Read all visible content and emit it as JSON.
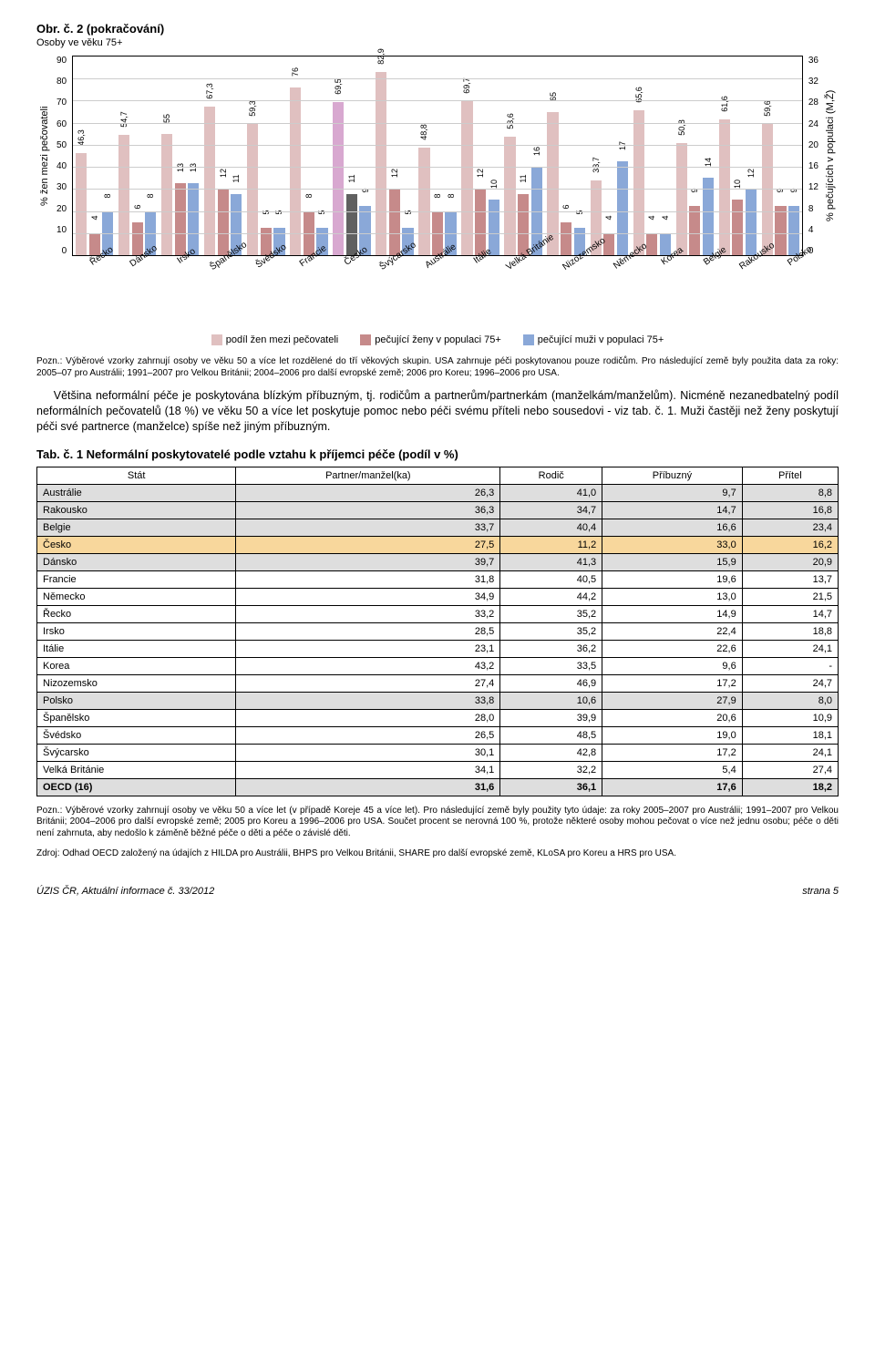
{
  "chart": {
    "title": "Obr. č. 2  (pokračování)",
    "subtitle": "Osoby ve věku 75+",
    "ylabel_left": "% žen mezi pečovateli",
    "ylabel_right": "% pečujících v populaci (M,Ž)",
    "y_left_ticks": [
      "90",
      "80",
      "70",
      "60",
      "50",
      "40",
      "30",
      "20",
      "10",
      "0"
    ],
    "y_right_ticks": [
      "36",
      "32",
      "28",
      "24",
      "20",
      "16",
      "12",
      "8",
      "4",
      "0"
    ],
    "y_left_max": 90,
    "y_right_max": 36,
    "legend": {
      "s1": "podíl žen mezi pečovateli",
      "s2": "pečující ženy v populaci 75+",
      "s3": "pečující muži v populaci 75+"
    },
    "colors": {
      "s1": "#e0c0c0",
      "s2": "#c68a8a",
      "s3": "#8aa8d8"
    },
    "countries": [
      {
        "name": "Řecko",
        "s1": 46.3,
        "s2": 4,
        "s3": 8
      },
      {
        "name": "Dánsko",
        "s1": 54.7,
        "s2": 6,
        "s3": 8
      },
      {
        "name": "Irsko",
        "s1": 55.0,
        "s2": 13,
        "s3": 13
      },
      {
        "name": "Španělsko",
        "s1": 67.3,
        "s2": 12,
        "s3": 11
      },
      {
        "name": "Švédsko",
        "s1": 59.3,
        "s2": 5,
        "s3": 5
      },
      {
        "name": "Francie",
        "s1": 76.0,
        "s2": 8,
        "s3": 5
      },
      {
        "name": "Česko",
        "s1": 69.5,
        "s2": 11,
        "s3": 9,
        "highlight": true
      },
      {
        "name": "Švýcarsko",
        "s1": 82.9,
        "s2": 12,
        "s3": 5
      },
      {
        "name": "Austrálie",
        "s1": 48.8,
        "s2": 8,
        "s3": 8
      },
      {
        "name": "Itálie",
        "s1": 69.7,
        "s2": 12,
        "s3": 10
      },
      {
        "name": "Velká Británie",
        "s1": 53.6,
        "s2": 11,
        "s3": 16
      },
      {
        "name": "Nizozemsko",
        "s1": 65.0,
        "s2": 6,
        "s3": 5
      },
      {
        "name": "Německo",
        "s1": 33.7,
        "s2": 4,
        "s3": 17
      },
      {
        "name": "Korea",
        "s1": 65.6,
        "s2": 4,
        "s3": 4
      },
      {
        "name": "Belgie",
        "s1": 50.8,
        "s2": 9,
        "s3": 14
      },
      {
        "name": "Rakousko",
        "s1": 61.6,
        "s2": 10,
        "s3": 12
      },
      {
        "name": "Polsko",
        "s1": 59.6,
        "s2": 9,
        "s3": 9
      }
    ]
  },
  "notes": {
    "n1": "Pozn.: Výběrové vzorky zahrnují osoby ve věku 50 a více let rozdělené do tří věkových skupin. USA zahrnuje péči poskytovanou pouze rodičům. Pro následující země byly použita data za roky: 2005–07 pro Austrálii; 1991–2007 pro Velkou Británii; 2004–2006 pro další evropské země; 2006 pro Koreu; 1996–2006 pro USA."
  },
  "body": {
    "p1": "Většina neformální péče je poskytována blízkým příbuzným, tj. rodičům a partnerům/partnerkám (manželkám/manželům). Nicméně nezanedbatelný podíl neformálních pečovatelů (18 %) ve věku 50 a více let poskytuje pomoc nebo péči svému příteli nebo sousedovi - viz tab. č. 1. Muži častěji než ženy poskytují péči své partnerce (manželce) spíše než jiným příbuzným."
  },
  "table": {
    "title": "Tab. č. 1  Neformální poskytovatelé podle vztahu k příjemci péče (podíl v %)",
    "columns": [
      "Stát",
      "Partner/manžel(ka)",
      "Rodič",
      "Příbuzný",
      "Přítel"
    ],
    "rows": [
      {
        "c": [
          "Austrálie",
          "26,3",
          "41,0",
          "9,7",
          "8,8"
        ],
        "shade": "gray"
      },
      {
        "c": [
          "Rakousko",
          "36,3",
          "34,7",
          "14,7",
          "16,8"
        ],
        "shade": "gray"
      },
      {
        "c": [
          "Belgie",
          "33,7",
          "40,4",
          "16,6",
          "23,4"
        ],
        "shade": "gray"
      },
      {
        "c": [
          "Česko",
          "27,5",
          "11,2",
          "33,0",
          "16,2"
        ],
        "shade": "orange"
      },
      {
        "c": [
          "Dánsko",
          "39,7",
          "41,3",
          "15,9",
          "20,9"
        ],
        "shade": "gray"
      },
      {
        "c": [
          "Francie",
          "31,8",
          "40,5",
          "19,6",
          "13,7"
        ]
      },
      {
        "c": [
          "Německo",
          "34,9",
          "44,2",
          "13,0",
          "21,5"
        ]
      },
      {
        "c": [
          "Řecko",
          "33,2",
          "35,2",
          "14,9",
          "14,7"
        ]
      },
      {
        "c": [
          "Irsko",
          "28,5",
          "35,2",
          "22,4",
          "18,8"
        ]
      },
      {
        "c": [
          "Itálie",
          "23,1",
          "36,2",
          "22,6",
          "24,1"
        ]
      },
      {
        "c": [
          "Korea",
          "43,2",
          "33,5",
          "9,6",
          "-"
        ]
      },
      {
        "c": [
          "Nizozemsko",
          "27,4",
          "46,9",
          "17,2",
          "24,7"
        ]
      },
      {
        "c": [
          "Polsko",
          "33,8",
          "10,6",
          "27,9",
          "8,0"
        ],
        "shade": "gray"
      },
      {
        "c": [
          "Španělsko",
          "28,0",
          "39,9",
          "20,6",
          "10,9"
        ]
      },
      {
        "c": [
          "Švédsko",
          "26,5",
          "48,5",
          "19,0",
          "18,1"
        ]
      },
      {
        "c": [
          "Švýcarsko",
          "30,1",
          "42,8",
          "17,2",
          "24,1"
        ]
      },
      {
        "c": [
          "Velká Británie",
          "34,1",
          "32,2",
          "5,4",
          "27,4"
        ]
      },
      {
        "c": [
          "OECD (16)",
          "31,6",
          "36,1",
          "17,6",
          "18,2"
        ],
        "shade": "gray",
        "bold": true
      }
    ]
  },
  "source": {
    "p1": "Pozn.: Výběrové vzorky zahrnují osoby ve věku 50 a více let (v případě Koreje 45 a více let). Pro následující země byly použity tyto údaje: za roky 2005–2007 pro Austrálii; 1991–2007 pro Velkou Británii; 2004–2006 pro další evropské země; 2005 pro Koreu a 1996–2006 pro USA. Součet procent se nerovná 100 %, protože některé osoby mohou pečovat o více než jednu osobu; péče o děti není zahrnuta, aby nedošlo k záměně běžné péče o děti a péče o závislé děti.",
    "p2": "Zdroj: Odhad OECD založený na údajích z HILDA pro Austrálii, BHPS pro Velkou Británii, SHARE pro další evropské země, KLoSA pro Koreu a HRS pro USA."
  },
  "footer": {
    "left": "ÚZIS ČR, Aktuální informace č. 33/2012",
    "right": "strana 5"
  }
}
